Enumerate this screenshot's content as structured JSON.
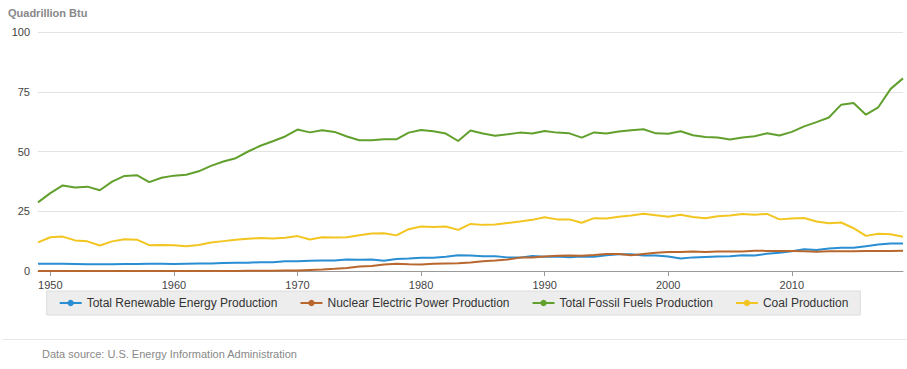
{
  "chart_data": {
    "type": "line",
    "ylabel": "Quadrillion Btu",
    "annotations": [
      "Data source: U.S. Energy Information Administration"
    ],
    "x": [
      1949,
      1950,
      1951,
      1952,
      1953,
      1954,
      1955,
      1956,
      1957,
      1958,
      1959,
      1960,
      1961,
      1962,
      1963,
      1964,
      1965,
      1966,
      1967,
      1968,
      1969,
      1970,
      1971,
      1972,
      1973,
      1974,
      1975,
      1976,
      1977,
      1978,
      1979,
      1980,
      1981,
      1982,
      1983,
      1984,
      1985,
      1986,
      1987,
      1988,
      1989,
      1990,
      1991,
      1992,
      1993,
      1994,
      1995,
      1996,
      1997,
      1998,
      1999,
      2000,
      2001,
      2002,
      2003,
      2004,
      2005,
      2006,
      2007,
      2008,
      2009,
      2010,
      2011,
      2012,
      2013,
      2014,
      2015,
      2016,
      2017,
      2018,
      2019
    ],
    "series": [
      {
        "name": "Total Renewable Energy Production",
        "color": "#2a8ed3",
        "values": [
          3.0,
          3.0,
          3.0,
          2.9,
          2.8,
          2.8,
          2.8,
          2.9,
          2.9,
          3.0,
          3.0,
          2.9,
          3.0,
          3.1,
          3.1,
          3.3,
          3.4,
          3.5,
          3.7,
          3.7,
          4.1,
          4.1,
          4.3,
          4.4,
          4.4,
          4.8,
          4.7,
          4.8,
          4.3,
          5.0,
          5.2,
          5.5,
          5.5,
          6.0,
          6.6,
          6.5,
          6.2,
          6.2,
          5.7,
          5.6,
          6.3,
          6.0,
          6.1,
          5.8,
          6.1,
          6.0,
          6.6,
          7.0,
          7.0,
          6.5,
          6.5,
          6.1,
          5.2,
          5.7,
          5.9,
          6.1,
          6.2,
          6.6,
          6.5,
          7.2,
          7.6,
          8.3,
          9.1,
          8.8,
          9.4,
          9.7,
          9.7,
          10.4,
          11.1,
          11.5,
          11.5
        ]
      },
      {
        "name": "Nuclear Electric Power Production",
        "color": "#b8672e",
        "values": [
          0,
          0,
          0,
          0,
          0,
          0,
          0,
          0,
          0,
          0,
          0,
          0,
          0,
          0,
          0,
          0,
          0,
          0.1,
          0.1,
          0.1,
          0.2,
          0.2,
          0.4,
          0.6,
          0.9,
          1.3,
          1.9,
          2.1,
          2.7,
          3.0,
          2.8,
          2.7,
          3.0,
          3.1,
          3.2,
          3.6,
          4.1,
          4.4,
          4.8,
          5.6,
          5.6,
          6.1,
          6.4,
          6.5,
          6.4,
          6.7,
          7.1,
          7.1,
          6.6,
          7.1,
          7.6,
          7.9,
          8.0,
          8.2,
          8.0,
          8.2,
          8.2,
          8.2,
          8.5,
          8.4,
          8.4,
          8.4,
          8.3,
          8.1,
          8.3,
          8.3,
          8.3,
          8.4,
          8.4,
          8.4,
          8.5
        ]
      },
      {
        "name": "Total Fossil Fuels Production",
        "color": "#62a02e",
        "values": [
          28.7,
          32.6,
          35.8,
          34.9,
          35.3,
          33.8,
          37.4,
          39.8,
          40.1,
          37.2,
          39.0,
          39.9,
          40.3,
          41.7,
          44.0,
          45.8,
          47.2,
          50.0,
          52.4,
          54.3,
          56.3,
          59.2,
          58.0,
          58.9,
          58.2,
          56.3,
          54.7,
          54.7,
          55.1,
          55.1,
          57.9,
          59.0,
          58.5,
          57.5,
          54.4,
          58.8,
          57.5,
          56.6,
          57.2,
          57.9,
          57.5,
          58.6,
          57.9,
          57.6,
          55.8,
          58.0,
          57.5,
          58.4,
          58.9,
          59.3,
          57.6,
          57.4,
          58.5,
          56.8,
          56.1,
          55.9,
          55.0,
          55.9,
          56.4,
          57.6,
          56.7,
          58.2,
          60.5,
          62.3,
          64.2,
          69.6,
          70.3,
          65.4,
          68.5,
          76.2,
          80.6
        ]
      },
      {
        "name": "Coal Production",
        "color": "#f2c520",
        "values": [
          12.0,
          14.1,
          14.4,
          12.8,
          12.4,
          10.7,
          12.4,
          13.3,
          13.1,
          10.8,
          10.9,
          10.8,
          10.4,
          10.9,
          11.9,
          12.5,
          13.1,
          13.5,
          13.8,
          13.6,
          13.9,
          14.6,
          13.2,
          14.1,
          14.0,
          14.1,
          15.0,
          15.7,
          15.8,
          14.9,
          17.5,
          18.6,
          18.4,
          18.6,
          17.2,
          19.7,
          19.3,
          19.5,
          20.1,
          20.7,
          21.4,
          22.5,
          21.6,
          21.6,
          20.2,
          22.1,
          22.0,
          22.7,
          23.2,
          24.0,
          23.3,
          22.7,
          23.5,
          22.6,
          22.1,
          22.9,
          23.2,
          23.8,
          23.5,
          23.9,
          21.6,
          22.0,
          22.2,
          20.7,
          20.0,
          20.3,
          17.9,
          14.7,
          15.6,
          15.4,
          14.3
        ]
      }
    ],
    "xlim": [
      1949,
      2019
    ],
    "xticks": [
      1950,
      1960,
      1970,
      1980,
      1990,
      2000,
      2010
    ],
    "ylim": [
      0,
      100
    ],
    "yticks": [
      0,
      25,
      50,
      75,
      100
    ],
    "grid": true,
    "legend": "bottom"
  }
}
